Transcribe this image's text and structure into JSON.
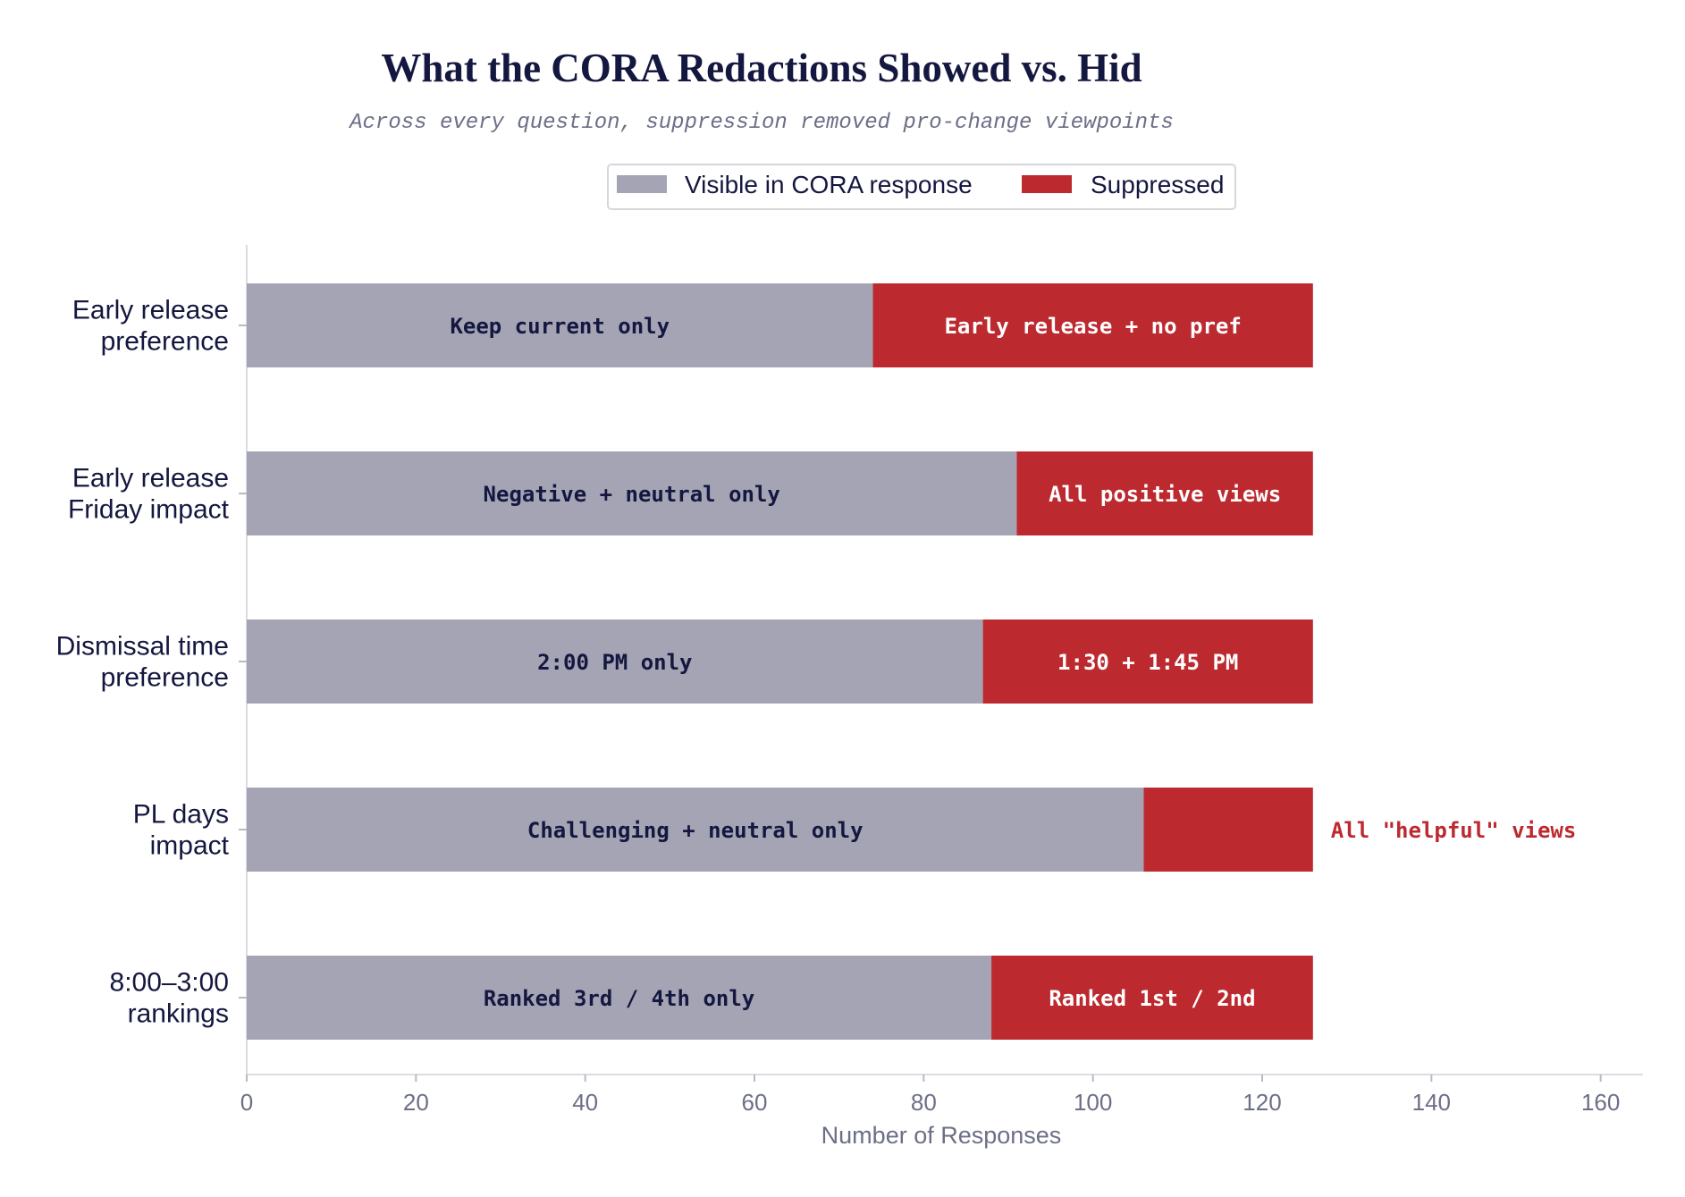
{
  "chart_data": {
    "type": "bar",
    "orientation": "horizontal",
    "stacked": true,
    "title": "What the CORA Redactions Showed vs. Hid",
    "subtitle": "Across every question, suppression removed pro-change viewpoints",
    "xlabel": "Number of Responses",
    "ylabel": "",
    "xlim": [
      0,
      165
    ],
    "xticks": [
      0,
      20,
      40,
      60,
      80,
      100,
      120,
      140,
      160
    ],
    "grid": false,
    "legend_position": "top-center",
    "categories": [
      [
        "Early release",
        "preference"
      ],
      [
        "Early release",
        "Friday impact"
      ],
      [
        "Dismissal time",
        "preference"
      ],
      [
        "PL days",
        "impact"
      ],
      [
        "8:00–3:00",
        "rankings"
      ]
    ],
    "series": [
      {
        "name": "Visible in CORA response",
        "color": "#a5a4b4",
        "label_color": "#14173f",
        "values": [
          74,
          91,
          87,
          106,
          88
        ],
        "segment_labels": [
          "Keep current only",
          "Negative + neutral only",
          "2:00 PM only",
          "Challenging + neutral only",
          "Ranked 3rd / 4th only"
        ],
        "label_outside": [
          false,
          false,
          false,
          false,
          false
        ]
      },
      {
        "name": "Suppressed",
        "color": "#bc2a30",
        "label_color": "#ffffff",
        "values": [
          52,
          35,
          39,
          20,
          38
        ],
        "segment_labels": [
          "Early release + no pref",
          "All positive views",
          "1:30 + 1:45 PM",
          "All \"helpful\" views",
          "Ranked 1st / 2nd"
        ],
        "label_outside": [
          false,
          false,
          false,
          true,
          false
        ]
      }
    ]
  }
}
